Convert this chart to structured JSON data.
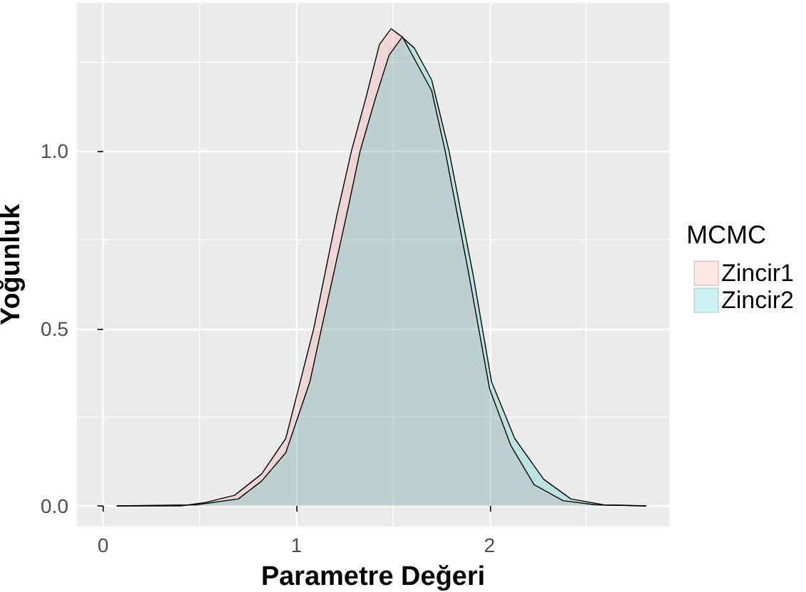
{
  "chart_data": {
    "type": "area",
    "xlabel": "Parametre Değeri",
    "ylabel": "Yoğunluk",
    "legend_title": "MCMC",
    "legend": "right",
    "grid": true,
    "xlim": [
      -0.136,
      2.93
    ],
    "xticks": [
      0,
      1,
      2
    ],
    "ylim": [
      -0.058,
      1.417
    ],
    "yticks": [
      {
        "value": 0,
        "label": "0.0"
      },
      {
        "value": 0.5,
        "label": "0.5"
      },
      {
        "value": 1,
        "label": "1.0"
      }
    ],
    "series": [
      {
        "name": "Zincir1",
        "color": "#f8766d",
        "x": [
          0.07,
          0.4,
          0.53,
          0.68,
          0.82,
          0.945,
          1.02,
          1.09,
          1.21,
          1.285,
          1.36,
          1.43,
          1.49,
          1.55,
          1.7,
          1.77,
          1.89,
          2.0,
          2.11,
          2.23,
          2.38,
          2.55,
          2.81
        ],
        "values": [
          0,
          0,
          0.01,
          0.03,
          0.09,
          0.19,
          0.35,
          0.5,
          0.82,
          1.0,
          1.15,
          1.3,
          1.344,
          1.32,
          1.17,
          1.0,
          0.66,
          0.33,
          0.17,
          0.06,
          0.015,
          0.003,
          0
        ]
      },
      {
        "name": "Zincir2",
        "color": "#00bfc4",
        "x": [
          0.07,
          0.48,
          0.7,
          0.82,
          0.945,
          1.07,
          1.13,
          1.26,
          1.33,
          1.41,
          1.48,
          1.547,
          1.61,
          1.7,
          1.79,
          1.915,
          2.01,
          2.13,
          2.28,
          2.42,
          2.59,
          2.81
        ],
        "values": [
          0,
          0.003,
          0.02,
          0.07,
          0.15,
          0.35,
          0.5,
          0.82,
          1.0,
          1.15,
          1.27,
          1.32,
          1.29,
          1.2,
          1.0,
          0.65,
          0.35,
          0.19,
          0.075,
          0.02,
          0.003,
          0
        ]
      }
    ]
  }
}
